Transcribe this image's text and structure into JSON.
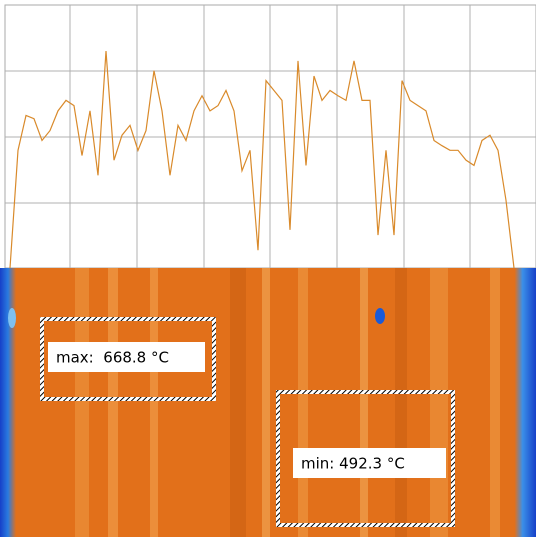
{
  "profile": {
    "type": "line",
    "color": "#d98a2b",
    "ylim": [
      0,
      4
    ],
    "values": [
      0,
      1.79,
      2.32,
      2.27,
      1.94,
      2.09,
      2.39,
      2.55,
      2.47,
      1.71,
      2.39,
      1.41,
      3.3,
      1.64,
      2.02,
      2.17,
      1.79,
      2.09,
      3.0,
      2.39,
      1.41,
      2.17,
      1.94,
      2.39,
      2.62,
      2.39,
      2.47,
      2.7,
      2.39,
      1.48,
      1.79,
      0.27,
      2.85,
      2.7,
      2.55,
      0.58,
      3.15,
      1.56,
      2.92,
      2.55,
      2.7,
      2.62,
      2.55,
      3.15,
      2.55,
      2.55,
      0.5,
      1.79,
      0.5,
      2.85,
      2.55,
      2.47,
      2.39,
      1.94,
      1.86,
      1.79,
      1.79,
      1.64,
      1.56,
      1.94,
      2.02,
      1.79,
      1.03,
      0
    ]
  },
  "rois": [
    {
      "label": "max:  668.8 °C"
    },
    {
      "label": "min: 492.3 °C"
    }
  ]
}
